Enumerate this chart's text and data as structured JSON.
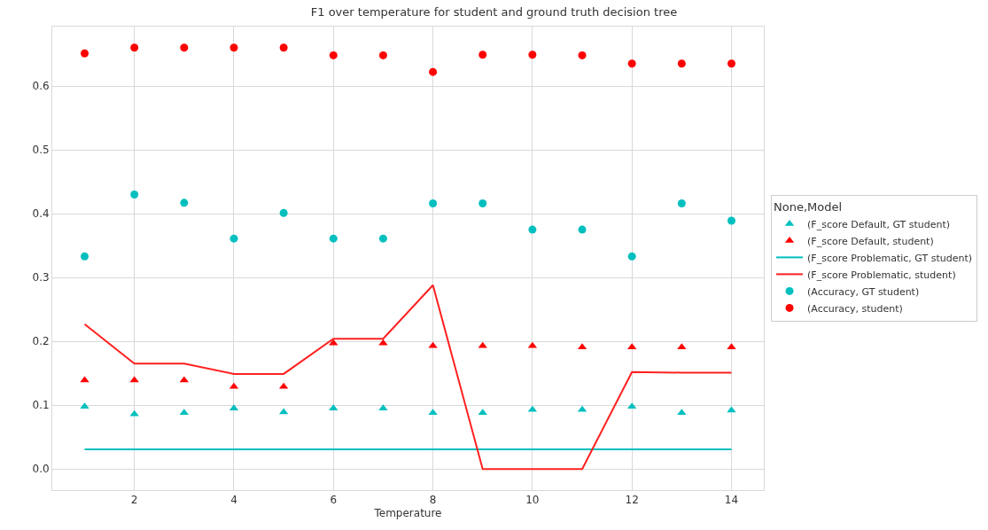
{
  "chart_data": {
    "type": "scatter",
    "title": "F1 over temperature for student and ground truth decision tree",
    "xlabel": "Temperature",
    "legend_title": "None,Model",
    "x": [
      1,
      2,
      3,
      4,
      5,
      6,
      7,
      8,
      9,
      10,
      11,
      12,
      13,
      14
    ],
    "series": [
      {
        "name": "(F_score Default, GT student)",
        "marker": "triangle",
        "color": "#00bfbf",
        "values": [
          0.098,
          0.086,
          0.088,
          0.095,
          0.089,
          0.095,
          0.095,
          0.088,
          0.088,
          0.093,
          0.093,
          0.098,
          0.088,
          0.092
        ]
      },
      {
        "name": "(F_score Default, student)",
        "marker": "triangle",
        "color": "#ff0000",
        "values": [
          0.139,
          0.139,
          0.139,
          0.129,
          0.129,
          0.197,
          0.197,
          0.193,
          0.193,
          0.193,
          0.191,
          0.191,
          0.191,
          0.191
        ]
      },
      {
        "name": "(F_score Problematic, GT student)",
        "type": "line",
        "marker": "none",
        "line_style": "solid",
        "color": "#00bfbf",
        "values": [
          0.031,
          0.031,
          0.031,
          0.031,
          0.031,
          0.031,
          0.031,
          0.031,
          0.031,
          0.031,
          0.031,
          0.031,
          0.031,
          0.031
        ]
      },
      {
        "name": "(F_score Problematic, student)",
        "type": "line",
        "marker": "none",
        "line_style": "solid",
        "color": "#ff2020",
        "values": [
          0.227,
          0.165,
          0.165,
          0.149,
          0.149,
          0.204,
          0.204,
          0.288,
          0.0,
          0.0,
          0.0,
          0.152,
          0.151,
          0.151
        ]
      },
      {
        "name": "(Accuracy, GT student)",
        "marker": "circle",
        "color": "#00bfbf",
        "values": [
          0.333,
          0.43,
          0.417,
          0.361,
          0.401,
          0.361,
          0.361,
          0.416,
          0.416,
          0.375,
          0.375,
          0.333,
          0.416,
          0.389
        ]
      },
      {
        "name": "(Accuracy, student)",
        "marker": "circle",
        "color": "#ff0000",
        "values": [
          0.651,
          0.66,
          0.66,
          0.66,
          0.66,
          0.648,
          0.648,
          0.622,
          0.649,
          0.649,
          0.648,
          0.635,
          0.635,
          0.635
        ]
      }
    ],
    "xlim": [
      0.35,
      14.65
    ],
    "xticks": [
      2,
      4,
      6,
      8,
      10,
      12,
      14
    ],
    "ylim": [
      -0.033,
      0.693
    ],
    "yticks": [
      {
        "value": 0,
        "label": "0.0"
      },
      0.1,
      0.2,
      0.3,
      0.4,
      0.5,
      0.6
    ],
    "grid": true,
    "legend": "right"
  }
}
